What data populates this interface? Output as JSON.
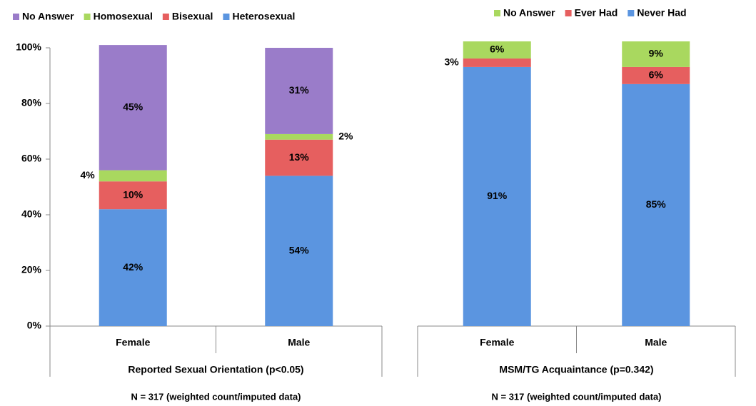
{
  "chart_data": [
    {
      "type": "stacked_bar",
      "categories": [
        "Female",
        "Male"
      ],
      "series": [
        {
          "name": "Heterosexual",
          "color": "#5b95e0",
          "values": [
            42,
            54
          ],
          "value_labels": [
            "42%",
            "54%"
          ]
        },
        {
          "name": "Bisexual",
          "color": "#e65f5f",
          "values": [
            10,
            13
          ],
          "value_labels": [
            "10%",
            "13%"
          ]
        },
        {
          "name": "Homosexual",
          "color": "#a9d85f",
          "values": [
            4,
            2
          ],
          "value_labels": [
            "4%",
            "2%"
          ]
        },
        {
          "name": "No Answer",
          "color": "#9a7cc9",
          "values": [
            45,
            31
          ],
          "value_labels": [
            "45%",
            "31%"
          ]
        }
      ],
      "ylim": [
        0,
        100
      ],
      "yticks": [
        {
          "value": 0,
          "label": "0%"
        },
        {
          "value": 20,
          "label": "20%"
        },
        {
          "value": 40,
          "label": "40%"
        },
        {
          "value": 60,
          "label": "60%"
        },
        {
          "value": 80,
          "label": "80%"
        },
        {
          "value": 100,
          "label": "100%"
        }
      ],
      "xlabel": "Reported Sexual Orientation  (p<0.05)",
      "note": "N = 317 (weighted count/imputed data)",
      "legend": "top"
    },
    {
      "type": "stacked_bar",
      "categories": [
        "Female",
        "Male"
      ],
      "series": [
        {
          "name": "Never Had",
          "color": "#5b95e0",
          "values": [
            91,
            85
          ],
          "value_labels": [
            "91%",
            "85%"
          ]
        },
        {
          "name": "Ever Had",
          "color": "#e65f5f",
          "values": [
            3,
            6
          ],
          "value_labels": [
            "3%",
            "6%"
          ]
        },
        {
          "name": "No Answer",
          "color": "#a9d85f",
          "values": [
            6,
            9
          ],
          "value_labels": [
            "6%",
            "9%"
          ]
        }
      ],
      "xlabel": "MSM/TG Acquaintance   (p=0.342)",
      "note": "N = 317 (weighted count/imputed data)",
      "legend": "top"
    }
  ]
}
